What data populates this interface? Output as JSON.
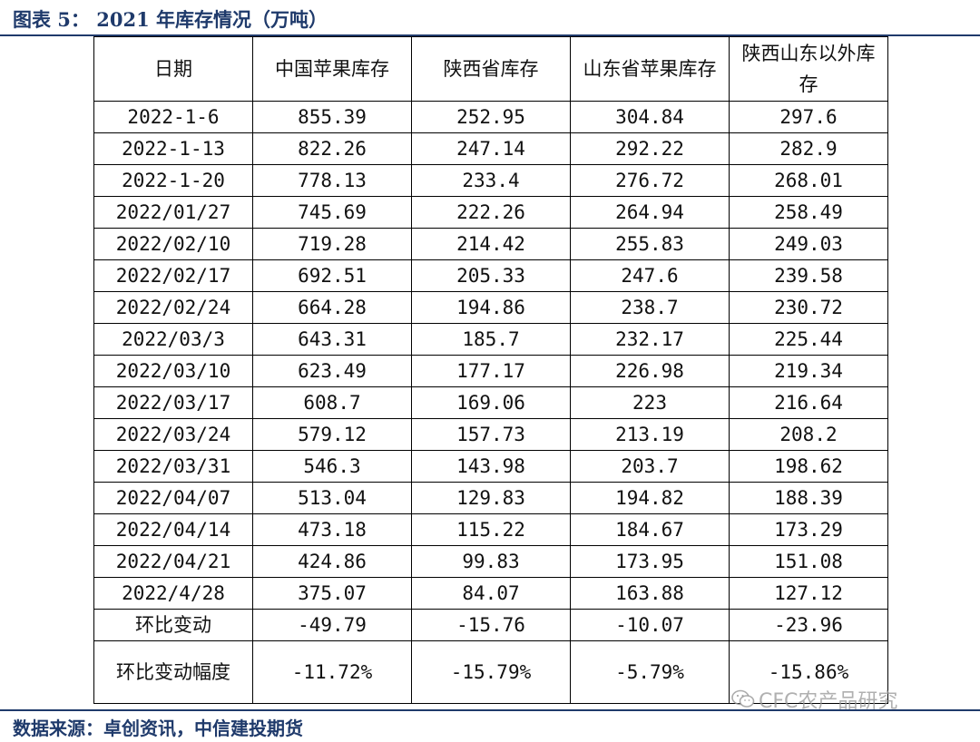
{
  "title": "图表 5：  2021 年库存情况（万吨）",
  "table": {
    "headers": [
      "日期",
      "中国苹果库存",
      "陕西省库存",
      "山东省苹果库存",
      "陕西山东以外库存"
    ],
    "rows": [
      [
        "2022-1-6",
        "855.39",
        "252.95",
        "304.84",
        "297.6"
      ],
      [
        "2022-1-13",
        "822.26",
        "247.14",
        "292.22",
        "282.9"
      ],
      [
        "2022-1-20",
        "778.13",
        "233.4",
        "276.72",
        "268.01"
      ],
      [
        "2022/01/27",
        "745.69",
        "222.26",
        "264.94",
        "258.49"
      ],
      [
        "2022/02/10",
        "719.28",
        "214.42",
        "255.83",
        "249.03"
      ],
      [
        "2022/02/17",
        "692.51",
        "205.33",
        "247.6",
        "239.58"
      ],
      [
        "2022/02/24",
        "664.28",
        "194.86",
        "238.7",
        "230.72"
      ],
      [
        "2022/03/3",
        "643.31",
        "185.7",
        "232.17",
        "225.44"
      ],
      [
        "2022/03/10",
        "623.49",
        "177.17",
        "226.98",
        "219.34"
      ],
      [
        "2022/03/17",
        "608.7",
        "169.06",
        "223",
        "216.64"
      ],
      [
        "2022/03/24",
        "579.12",
        "157.73",
        "213.19",
        "208.2"
      ],
      [
        "2022/03/31",
        "546.3",
        "143.98",
        "203.7",
        "198.62"
      ],
      [
        "2022/04/07",
        "513.04",
        "129.83",
        "194.82",
        "188.39"
      ],
      [
        "2022/04/14",
        "473.18",
        "115.22",
        "184.67",
        "173.29"
      ],
      [
        "2022/04/21",
        "424.86",
        "99.83",
        "173.95",
        "151.08"
      ],
      [
        "2022/4/28",
        "375.07",
        "84.07",
        "163.88",
        "127.12"
      ],
      [
        "环比变动",
        "-49.79",
        "-15.76",
        "-10.07",
        "-23.96"
      ]
    ],
    "last_row": [
      "环比变动幅度",
      "-11.72%",
      "-15.79%",
      "-5.79%",
      "-15.86%"
    ]
  },
  "source": "数据来源：卓创资讯，中信建投期货",
  "watermark": "CFC农产品研究",
  "colors": {
    "accent": "#1f3a6b",
    "border": "#000000"
  }
}
